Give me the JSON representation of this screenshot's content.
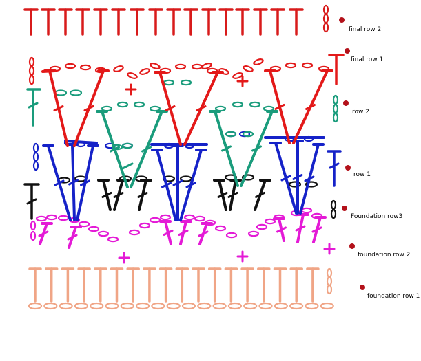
{
  "rows": [
    {
      "label": "final row 2",
      "color": "#d81b1b"
    },
    {
      "label": "final row 1",
      "color": "#e31919"
    },
    {
      "label": "row 2",
      "color": "#1a9c7c"
    },
    {
      "label": "row 1",
      "color": "#1522c8"
    },
    {
      "label": "Foundation row3",
      "color": "#111111"
    },
    {
      "label": "foundation row 2",
      "color": "#e41ad6"
    },
    {
      "label": "foundation row 1",
      "color": "#f0a586"
    }
  ],
  "marker_color": "#b3111a"
}
